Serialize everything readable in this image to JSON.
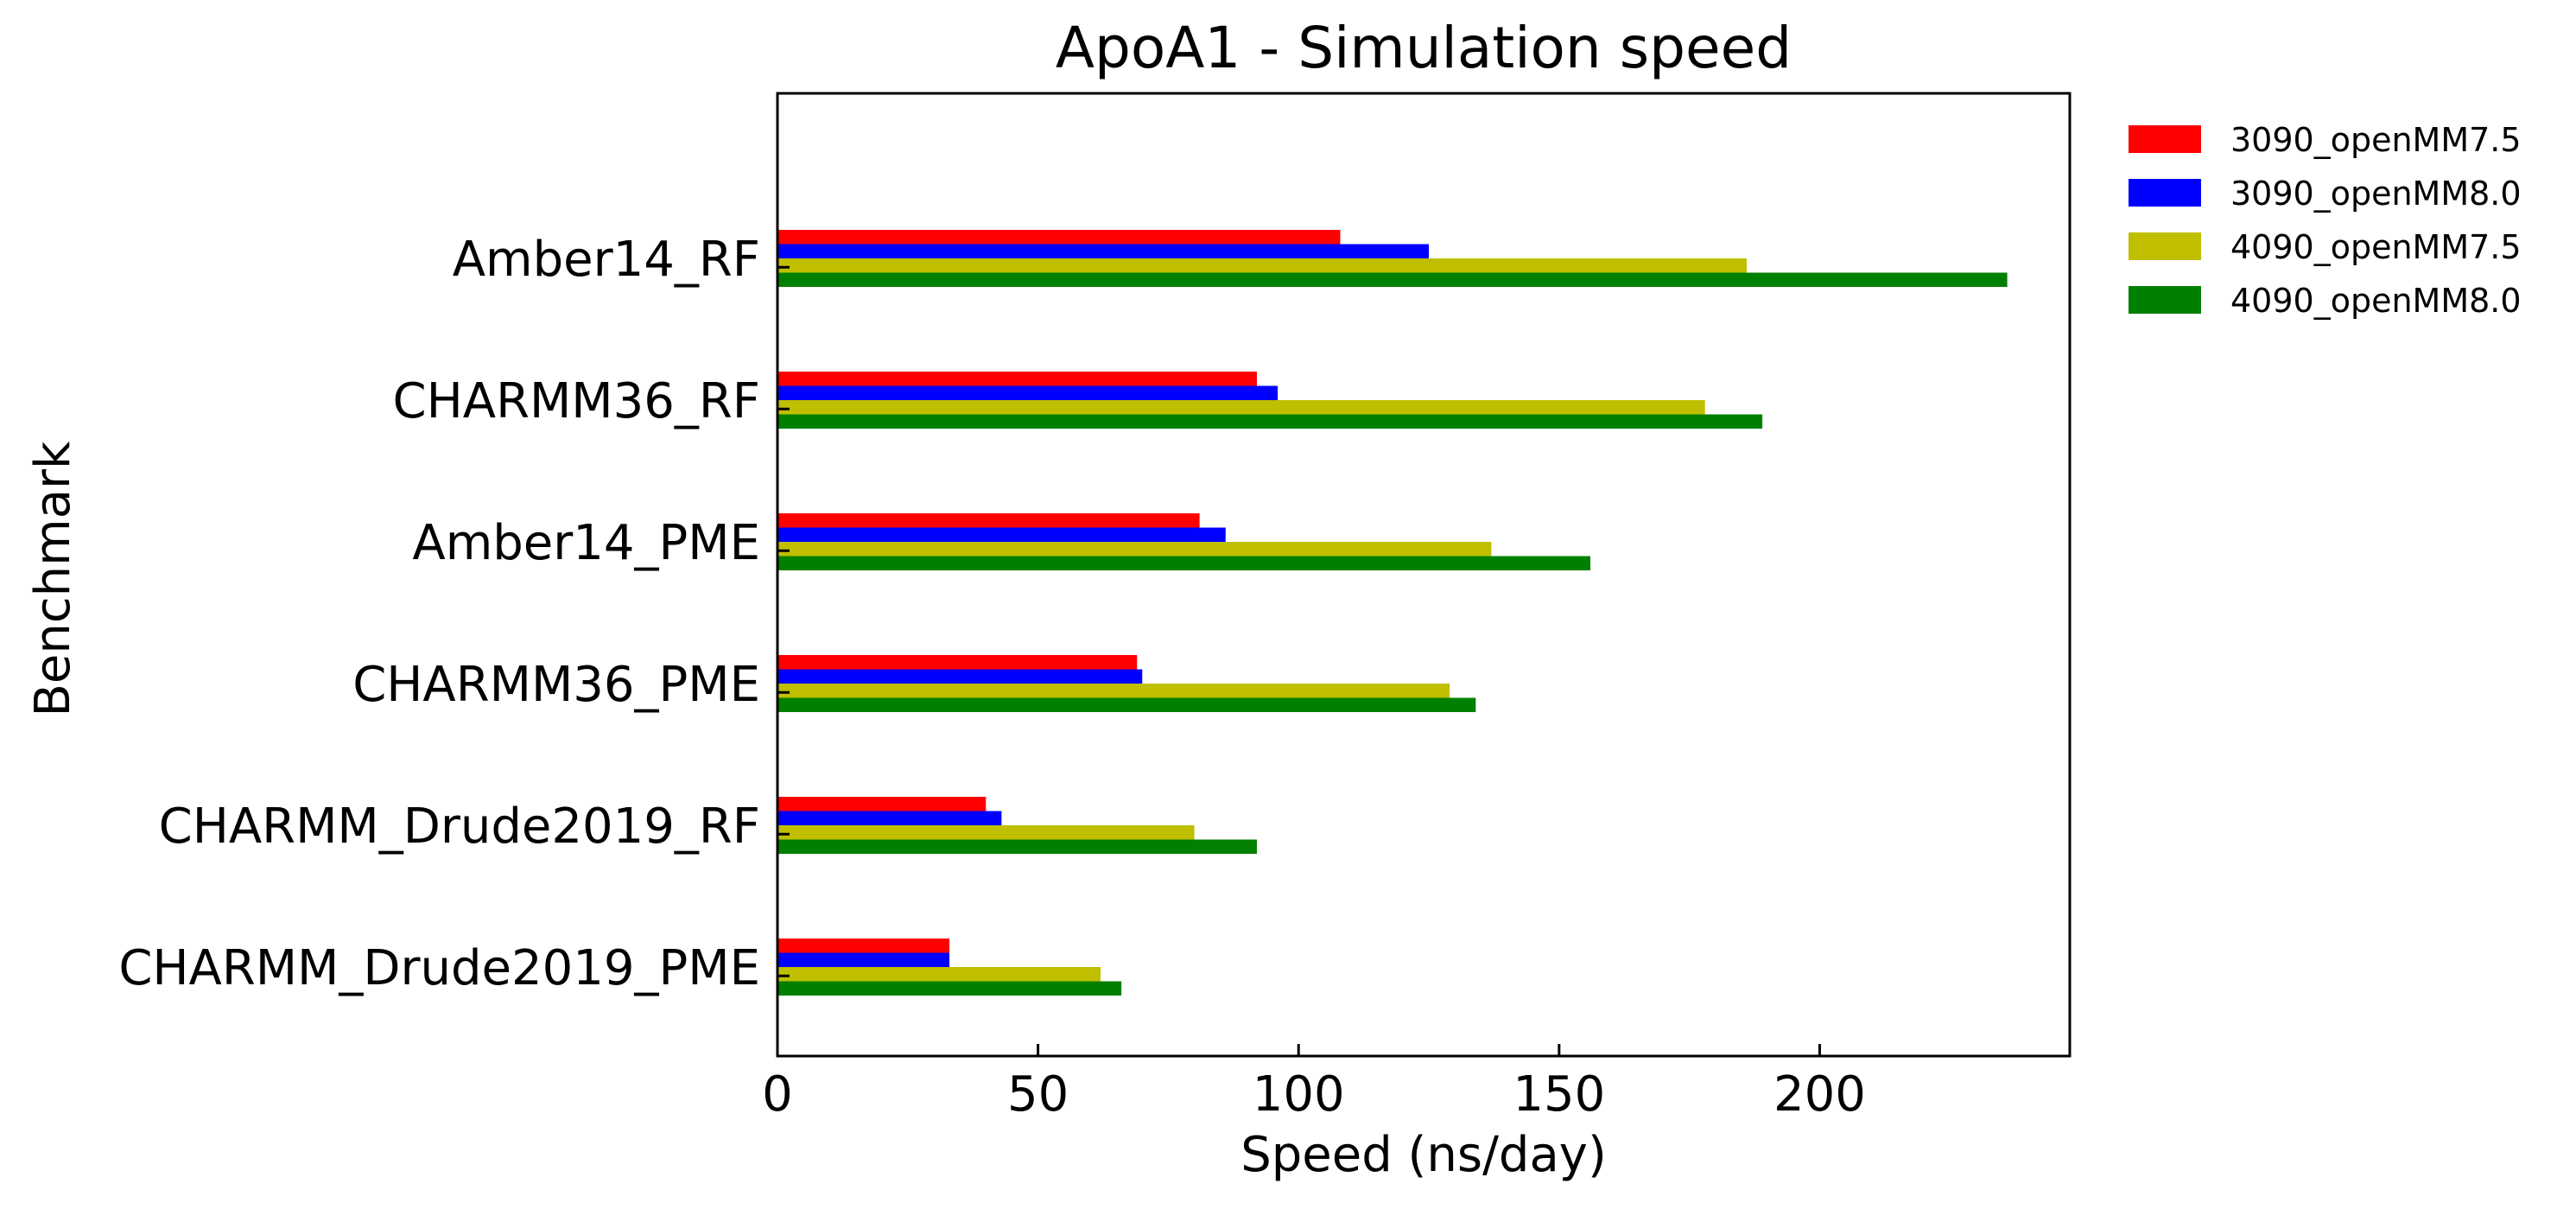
{
  "chart_data": {
    "type": "bar",
    "orientation": "horizontal",
    "title": "ApoA1 - Simulation speed",
    "xlabel": "Speed (ns/day)",
    "ylabel": "Benchmark",
    "xlim": [
      0,
      248
    ],
    "xticks": [
      "0",
      "50",
      "100",
      "150",
      "200"
    ],
    "tick_values": [
      0,
      50,
      100,
      150,
      200
    ],
    "grid": false,
    "legend_position": "outside-right-top",
    "categories": [
      "Amber14_RF",
      "CHARMM36_RF",
      "Amber14_PME",
      "CHARMM36_PME",
      "CHARMM_Drude2019_RF",
      "CHARMM_Drude2019_PME"
    ],
    "series": [
      {
        "name": "3090_openMM7.5",
        "color": "#ff0000",
        "values": [
          108,
          92,
          81,
          69,
          40,
          33
        ]
      },
      {
        "name": "3090_openMM8.0",
        "color": "#0000ff",
        "values": [
          125,
          96,
          86,
          70,
          43,
          33
        ]
      },
      {
        "name": "4090_openMM7.5",
        "color": "#bfbf00",
        "values": [
          186,
          178,
          137,
          129,
          80,
          62
        ]
      },
      {
        "name": "4090_openMM8.0",
        "color": "#008000",
        "values": [
          236,
          189,
          156,
          134,
          92,
          66
        ]
      }
    ]
  }
}
